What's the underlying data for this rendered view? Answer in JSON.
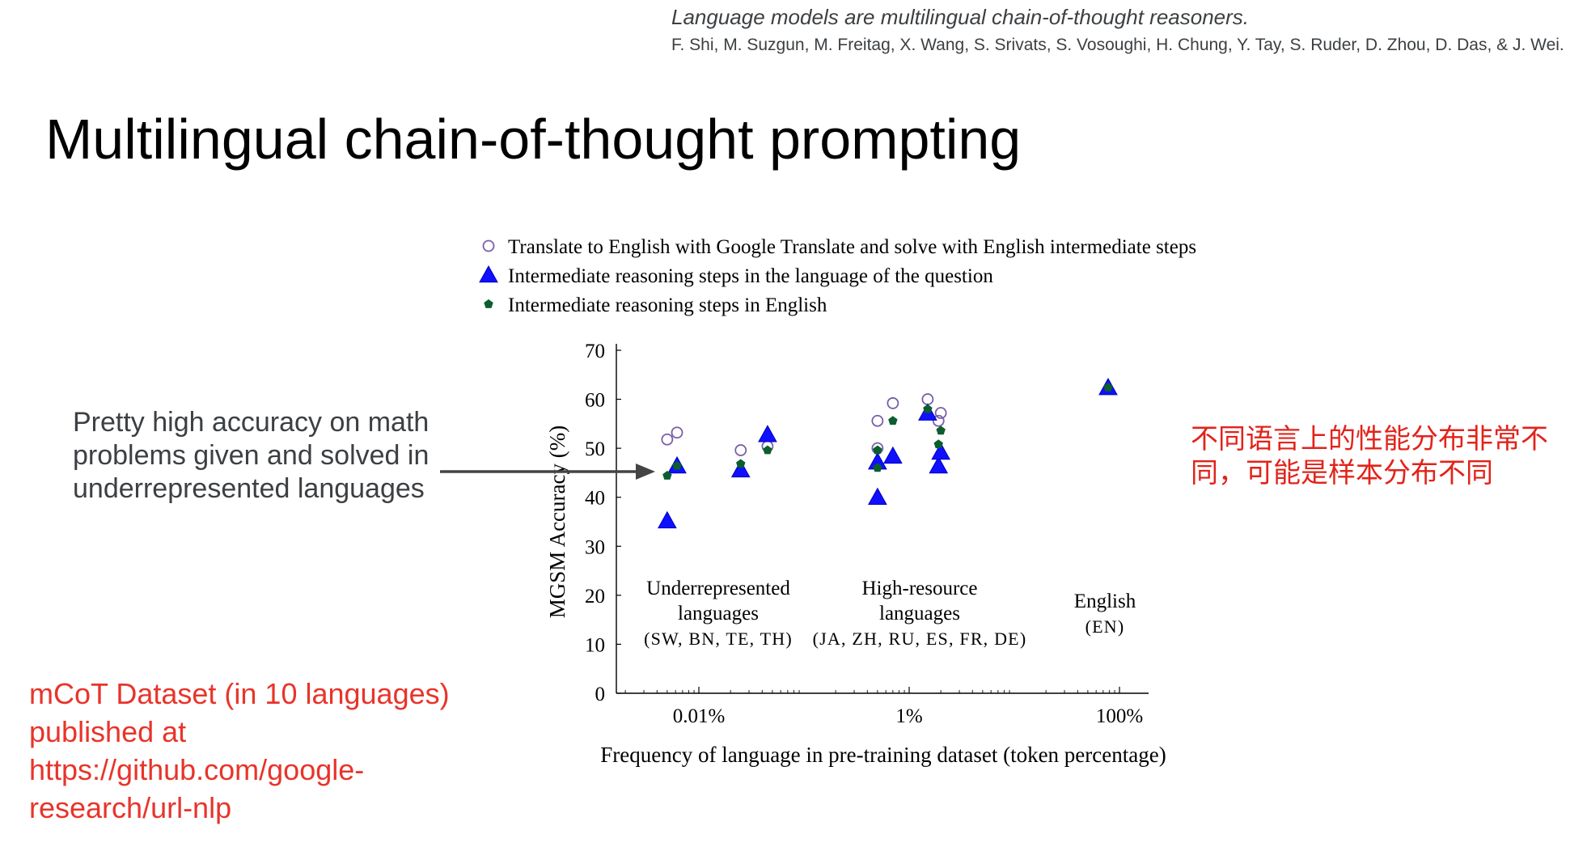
{
  "citation": {
    "title": "Language models are multilingual chain-of-thought reasoners.",
    "authors": "F. Shi, M. Suzgun, M. Freitag, X. Wang, S. Srivats, S. Vosoughi, H. Chung, Y. Tay, S. Ruder, D. Zhou, D. Das, & J. Wei."
  },
  "slide_title": "Multilingual chain-of-thought prompting",
  "note": "Pretty high accuracy on math problems given and solved in underrepresented languages",
  "red_note_cn": "不同语言上的性能分布非常不同，可能是样本分布不同",
  "red_note_dataset": "mCoT Dataset (in 10 languages) published at https://github.com/google-research/url-nlp",
  "colors": {
    "translate": "#7a5ea8",
    "native": "#1010ff",
    "english": "#0b5e2e",
    "arrow": "#444444",
    "red": "#e2231a"
  },
  "chart_data": {
    "type": "scatter",
    "xlabel": "Frequency of language in pre-training dataset (token percentage)",
    "ylabel": "MGSM Accuracy (%)",
    "xscale": "log",
    "x_ticks": [
      "0.01%",
      "1%",
      "100%"
    ],
    "y_ticks": [
      "0",
      "10",
      "20",
      "30",
      "40",
      "50",
      "60",
      "70"
    ],
    "ylim": [
      0,
      70
    ],
    "legend_position": "top",
    "legend": [
      {
        "key": "translate",
        "marker": "open-circle",
        "label": "Translate to English with Google Translate and solve with English intermediate steps"
      },
      {
        "key": "native",
        "marker": "triangle",
        "label": "Intermediate reasoning steps in the language of the question"
      },
      {
        "key": "english",
        "marker": "pentagon",
        "label": "Intermediate reasoning steps in English"
      }
    ],
    "group_labels": [
      {
        "lines": [
          "Underrepresented",
          "languages",
          "(SW, BN, TE, TH)"
        ]
      },
      {
        "lines": [
          "High-resource",
          "languages",
          "(JA, ZH, RU, ES, FR, DE)"
        ]
      },
      {
        "lines": [
          "English",
          "(EN)"
        ]
      }
    ],
    "series": [
      {
        "key": "translate",
        "points": [
          {
            "x": 0.005,
            "y": 51.8
          },
          {
            "x": 0.0062,
            "y": 53.2
          },
          {
            "x": 0.025,
            "y": 49.6
          },
          {
            "x": 0.045,
            "y": 50.4
          },
          {
            "x": 0.5,
            "y": 55.6
          },
          {
            "x": 0.7,
            "y": 59.2
          },
          {
            "x": 0.5,
            "y": 50.0
          },
          {
            "x": 1.5,
            "y": 60.0
          },
          {
            "x": 1.9,
            "y": 55.6
          },
          {
            "x": 2.0,
            "y": 57.2
          }
        ]
      },
      {
        "key": "native",
        "points": [
          {
            "x": 0.005,
            "y": 35.2
          },
          {
            "x": 0.0062,
            "y": 46.4
          },
          {
            "x": 0.025,
            "y": 45.6
          },
          {
            "x": 0.045,
            "y": 52.8
          },
          {
            "x": 0.5,
            "y": 40.0
          },
          {
            "x": 0.5,
            "y": 47.2
          },
          {
            "x": 0.7,
            "y": 48.4
          },
          {
            "x": 1.5,
            "y": 57.2
          },
          {
            "x": 1.9,
            "y": 46.4
          },
          {
            "x": 2.0,
            "y": 49.2
          },
          {
            "x": 78,
            "y": 62.4
          }
        ]
      },
      {
        "key": "english",
        "points": [
          {
            "x": 0.005,
            "y": 44.4
          },
          {
            "x": 0.0062,
            "y": 46.4
          },
          {
            "x": 0.025,
            "y": 46.8
          },
          {
            "x": 0.045,
            "y": 49.6
          },
          {
            "x": 0.5,
            "y": 46.0
          },
          {
            "x": 0.5,
            "y": 49.6
          },
          {
            "x": 0.7,
            "y": 55.6
          },
          {
            "x": 1.5,
            "y": 58.0
          },
          {
            "x": 1.9,
            "y": 50.8
          },
          {
            "x": 2.0,
            "y": 53.6
          },
          {
            "x": 78,
            "y": 62.4
          }
        ]
      }
    ]
  }
}
